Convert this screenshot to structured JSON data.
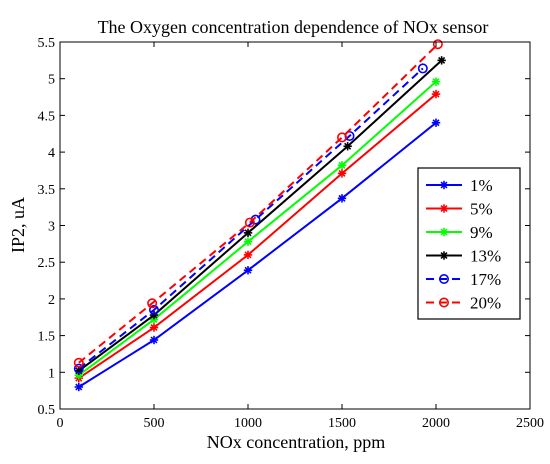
{
  "chart_data": {
    "type": "line",
    "title": "The Oxygen concentration dependence of NOx sensor",
    "xlabel": "NOx concentration, ppm",
    "ylabel": "IP2, uA",
    "xlim": [
      0,
      2500
    ],
    "ylim": [
      0.5,
      5.5
    ],
    "xticks": [
      0,
      500,
      1000,
      1500,
      2000,
      2500
    ],
    "yticks": [
      0.5,
      1,
      1.5,
      2,
      2.5,
      3,
      3.5,
      4,
      4.5,
      5,
      5.5
    ],
    "grid": false,
    "legend_position": "right",
    "series": [
      {
        "name": "1%",
        "color": "#0000ff",
        "line_style": "solid",
        "marker": "asterisk",
        "x": [
          100,
          500,
          1000,
          1500,
          2000
        ],
        "y": [
          0.8,
          1.44,
          2.39,
          3.37,
          4.4
        ]
      },
      {
        "name": "5%",
        "color": "#ff0000",
        "line_style": "solid",
        "marker": "asterisk",
        "x": [
          100,
          500,
          1000,
          1500,
          2000
        ],
        "y": [
          0.92,
          1.61,
          2.6,
          3.71,
          4.79
        ]
      },
      {
        "name": "9%",
        "color": "#00ff00",
        "line_style": "solid",
        "marker": "asterisk",
        "x": [
          100,
          500,
          1000,
          1500,
          2000
        ],
        "y": [
          0.96,
          1.72,
          2.78,
          3.82,
          4.96
        ]
      },
      {
        "name": "13%",
        "color": "#000000",
        "line_style": "solid",
        "marker": "asterisk",
        "x": [
          100,
          500,
          1000,
          1530,
          2030
        ],
        "y": [
          1.02,
          1.78,
          2.9,
          4.08,
          5.25
        ]
      },
      {
        "name": "17%",
        "color": "#0000ff",
        "line_style": "dashed",
        "marker": "circle",
        "x": [
          100,
          500,
          1040,
          1540,
          1930
        ],
        "y": [
          1.05,
          1.85,
          3.08,
          4.22,
          5.14
        ]
      },
      {
        "name": "20%",
        "color": "#ff0000",
        "line_style": "dashed",
        "marker": "circle",
        "x": [
          100,
          490,
          1010,
          1500,
          2010
        ],
        "y": [
          1.13,
          1.94,
          3.04,
          4.2,
          5.47
        ]
      }
    ]
  }
}
